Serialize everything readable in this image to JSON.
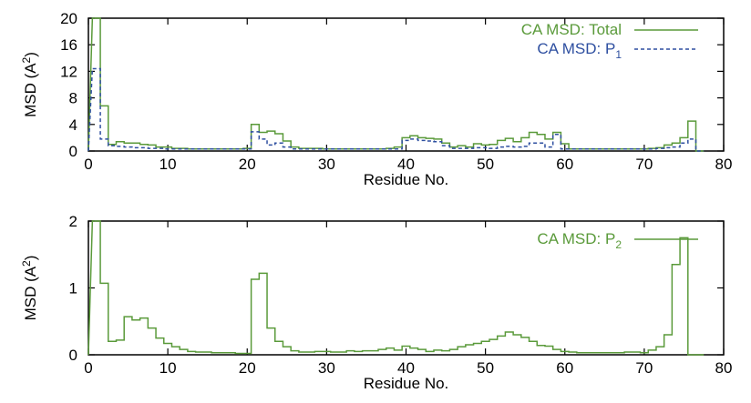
{
  "colors": {
    "total": "#5a9a3a",
    "p1": "#2e4fa0",
    "p2": "#5a9a3a",
    "axis": "#000000"
  },
  "chart_data": [
    {
      "type": "line",
      "xlabel": "Residue No.",
      "ylabel_main": "MSD (A",
      "ylabel_sup": "2",
      "ylabel_close": ")",
      "xlim": [
        0,
        80
      ],
      "ylim": [
        0,
        20
      ],
      "xticks": [
        0,
        10,
        20,
        30,
        40,
        50,
        60,
        70,
        80
      ],
      "yticks": [
        0,
        4,
        8,
        12,
        16,
        20
      ],
      "legend_position": "top-right",
      "series": [
        {
          "name": "CA MSD: Total",
          "style": "step-solid",
          "x": [
            1,
            2,
            3,
            4,
            5,
            6,
            7,
            8,
            9,
            10,
            11,
            12,
            13,
            14,
            15,
            16,
            17,
            18,
            19,
            20,
            21,
            22,
            23,
            24,
            25,
            26,
            27,
            28,
            29,
            30,
            31,
            32,
            33,
            34,
            35,
            36,
            37,
            38,
            39,
            40,
            41,
            42,
            43,
            44,
            45,
            46,
            47,
            48,
            49,
            50,
            51,
            52,
            53,
            54,
            55,
            56,
            57,
            58,
            59,
            60,
            61,
            62,
            63,
            64,
            65,
            66,
            67,
            68,
            69,
            70,
            71,
            72,
            73,
            74,
            75,
            76,
            77
          ],
          "values": [
            20,
            6.8,
            1.0,
            1.4,
            1.2,
            1.2,
            1.0,
            0.9,
            0.6,
            0.6,
            0.4,
            0.4,
            0.3,
            0.3,
            0.3,
            0.3,
            0.3,
            0.3,
            0.3,
            0.4,
            4.0,
            2.8,
            3.0,
            2.6,
            1.5,
            0.6,
            0.4,
            0.4,
            0.4,
            0.3,
            0.3,
            0.3,
            0.3,
            0.3,
            0.3,
            0.3,
            0.3,
            0.4,
            0.6,
            2.0,
            2.3,
            2.0,
            1.9,
            1.8,
            1.2,
            0.6,
            0.8,
            0.6,
            1.1,
            0.9,
            1.0,
            1.6,
            1.9,
            1.4,
            2.0,
            2.8,
            2.5,
            1.8,
            2.8,
            1.1,
            0.3,
            0.3,
            0.3,
            0.3,
            0.3,
            0.3,
            0.3,
            0.3,
            0.3,
            0.3,
            0.4,
            0.5,
            0.9,
            1.2,
            2.0,
            4.5,
            0
          ]
        },
        {
          "name": "CA MSD: P",
          "name_sub": "1",
          "style": "step-dashed",
          "x": [
            1,
            2,
            3,
            4,
            5,
            6,
            7,
            8,
            9,
            10,
            11,
            12,
            13,
            14,
            15,
            16,
            17,
            18,
            19,
            20,
            21,
            22,
            23,
            24,
            25,
            26,
            27,
            28,
            29,
            30,
            31,
            32,
            33,
            34,
            35,
            36,
            37,
            38,
            39,
            40,
            41,
            42,
            43,
            44,
            45,
            46,
            47,
            48,
            49,
            50,
            51,
            52,
            53,
            54,
            55,
            56,
            57,
            58,
            59,
            60,
            61,
            62,
            63,
            64,
            65,
            66,
            67,
            68,
            69,
            70,
            71,
            72,
            73,
            74,
            75,
            76,
            77
          ],
          "values": [
            12.4,
            1.8,
            0.8,
            0.7,
            0.6,
            0.5,
            0.5,
            0.4,
            0.4,
            0.3,
            0.3,
            0.3,
            0.3,
            0.3,
            0.3,
            0.3,
            0.3,
            0.3,
            0.3,
            0.3,
            2.9,
            1.8,
            0.9,
            1.2,
            0.6,
            0.3,
            0.3,
            0.3,
            0.3,
            0.3,
            0.3,
            0.3,
            0.3,
            0.3,
            0.3,
            0.3,
            0.3,
            0.3,
            0.3,
            1.6,
            1.8,
            1.6,
            1.5,
            1.4,
            0.8,
            0.4,
            0.4,
            0.4,
            0.5,
            0.5,
            0.4,
            0.6,
            0.7,
            0.6,
            0.7,
            1.2,
            1.2,
            0.6,
            2.5,
            0.3,
            0.3,
            0.3,
            0.3,
            0.3,
            0.3,
            0.3,
            0.3,
            0.3,
            0.3,
            0.3,
            0.3,
            0.4,
            0.5,
            0.6,
            1.2,
            1.8,
            0
          ]
        }
      ]
    },
    {
      "type": "line",
      "xlabel": "Residue No.",
      "ylabel_main": "MSD (A",
      "ylabel_sup": "2",
      "ylabel_close": ")",
      "xlim": [
        0,
        80
      ],
      "ylim": [
        0,
        2
      ],
      "xticks": [
        0,
        10,
        20,
        30,
        40,
        50,
        60,
        70,
        80
      ],
      "yticks": [
        0,
        1,
        2
      ],
      "legend_position": "top-right",
      "series": [
        {
          "name": "CA MSD: P",
          "name_sub": "2",
          "style": "step-solid",
          "x": [
            1,
            2,
            3,
            4,
            5,
            6,
            7,
            8,
            9,
            10,
            11,
            12,
            13,
            14,
            15,
            16,
            17,
            18,
            19,
            20,
            21,
            22,
            23,
            24,
            25,
            26,
            27,
            28,
            29,
            30,
            31,
            32,
            33,
            34,
            35,
            36,
            37,
            38,
            39,
            40,
            41,
            42,
            43,
            44,
            45,
            46,
            47,
            48,
            49,
            50,
            51,
            52,
            53,
            54,
            55,
            56,
            57,
            58,
            59,
            60,
            61,
            62,
            63,
            64,
            65,
            66,
            67,
            68,
            69,
            70,
            71,
            72,
            73,
            74,
            75,
            76,
            77
          ],
          "values": [
            2.0,
            1.07,
            0.2,
            0.22,
            0.57,
            0.52,
            0.55,
            0.4,
            0.25,
            0.17,
            0.12,
            0.08,
            0.05,
            0.04,
            0.04,
            0.03,
            0.03,
            0.03,
            0.02,
            0.02,
            1.13,
            1.22,
            0.4,
            0.2,
            0.12,
            0.06,
            0.04,
            0.04,
            0.05,
            0.05,
            0.04,
            0.04,
            0.06,
            0.05,
            0.06,
            0.06,
            0.08,
            0.1,
            0.07,
            0.13,
            0.1,
            0.08,
            0.05,
            0.07,
            0.06,
            0.08,
            0.12,
            0.15,
            0.17,
            0.2,
            0.23,
            0.28,
            0.34,
            0.3,
            0.26,
            0.2,
            0.14,
            0.13,
            0.08,
            0.05,
            0.04,
            0.03,
            0.03,
            0.03,
            0.03,
            0.03,
            0.03,
            0.04,
            0.04,
            0.03,
            0.07,
            0.12,
            0.3,
            1.35,
            1.75,
            0,
            0
          ]
        }
      ]
    }
  ]
}
